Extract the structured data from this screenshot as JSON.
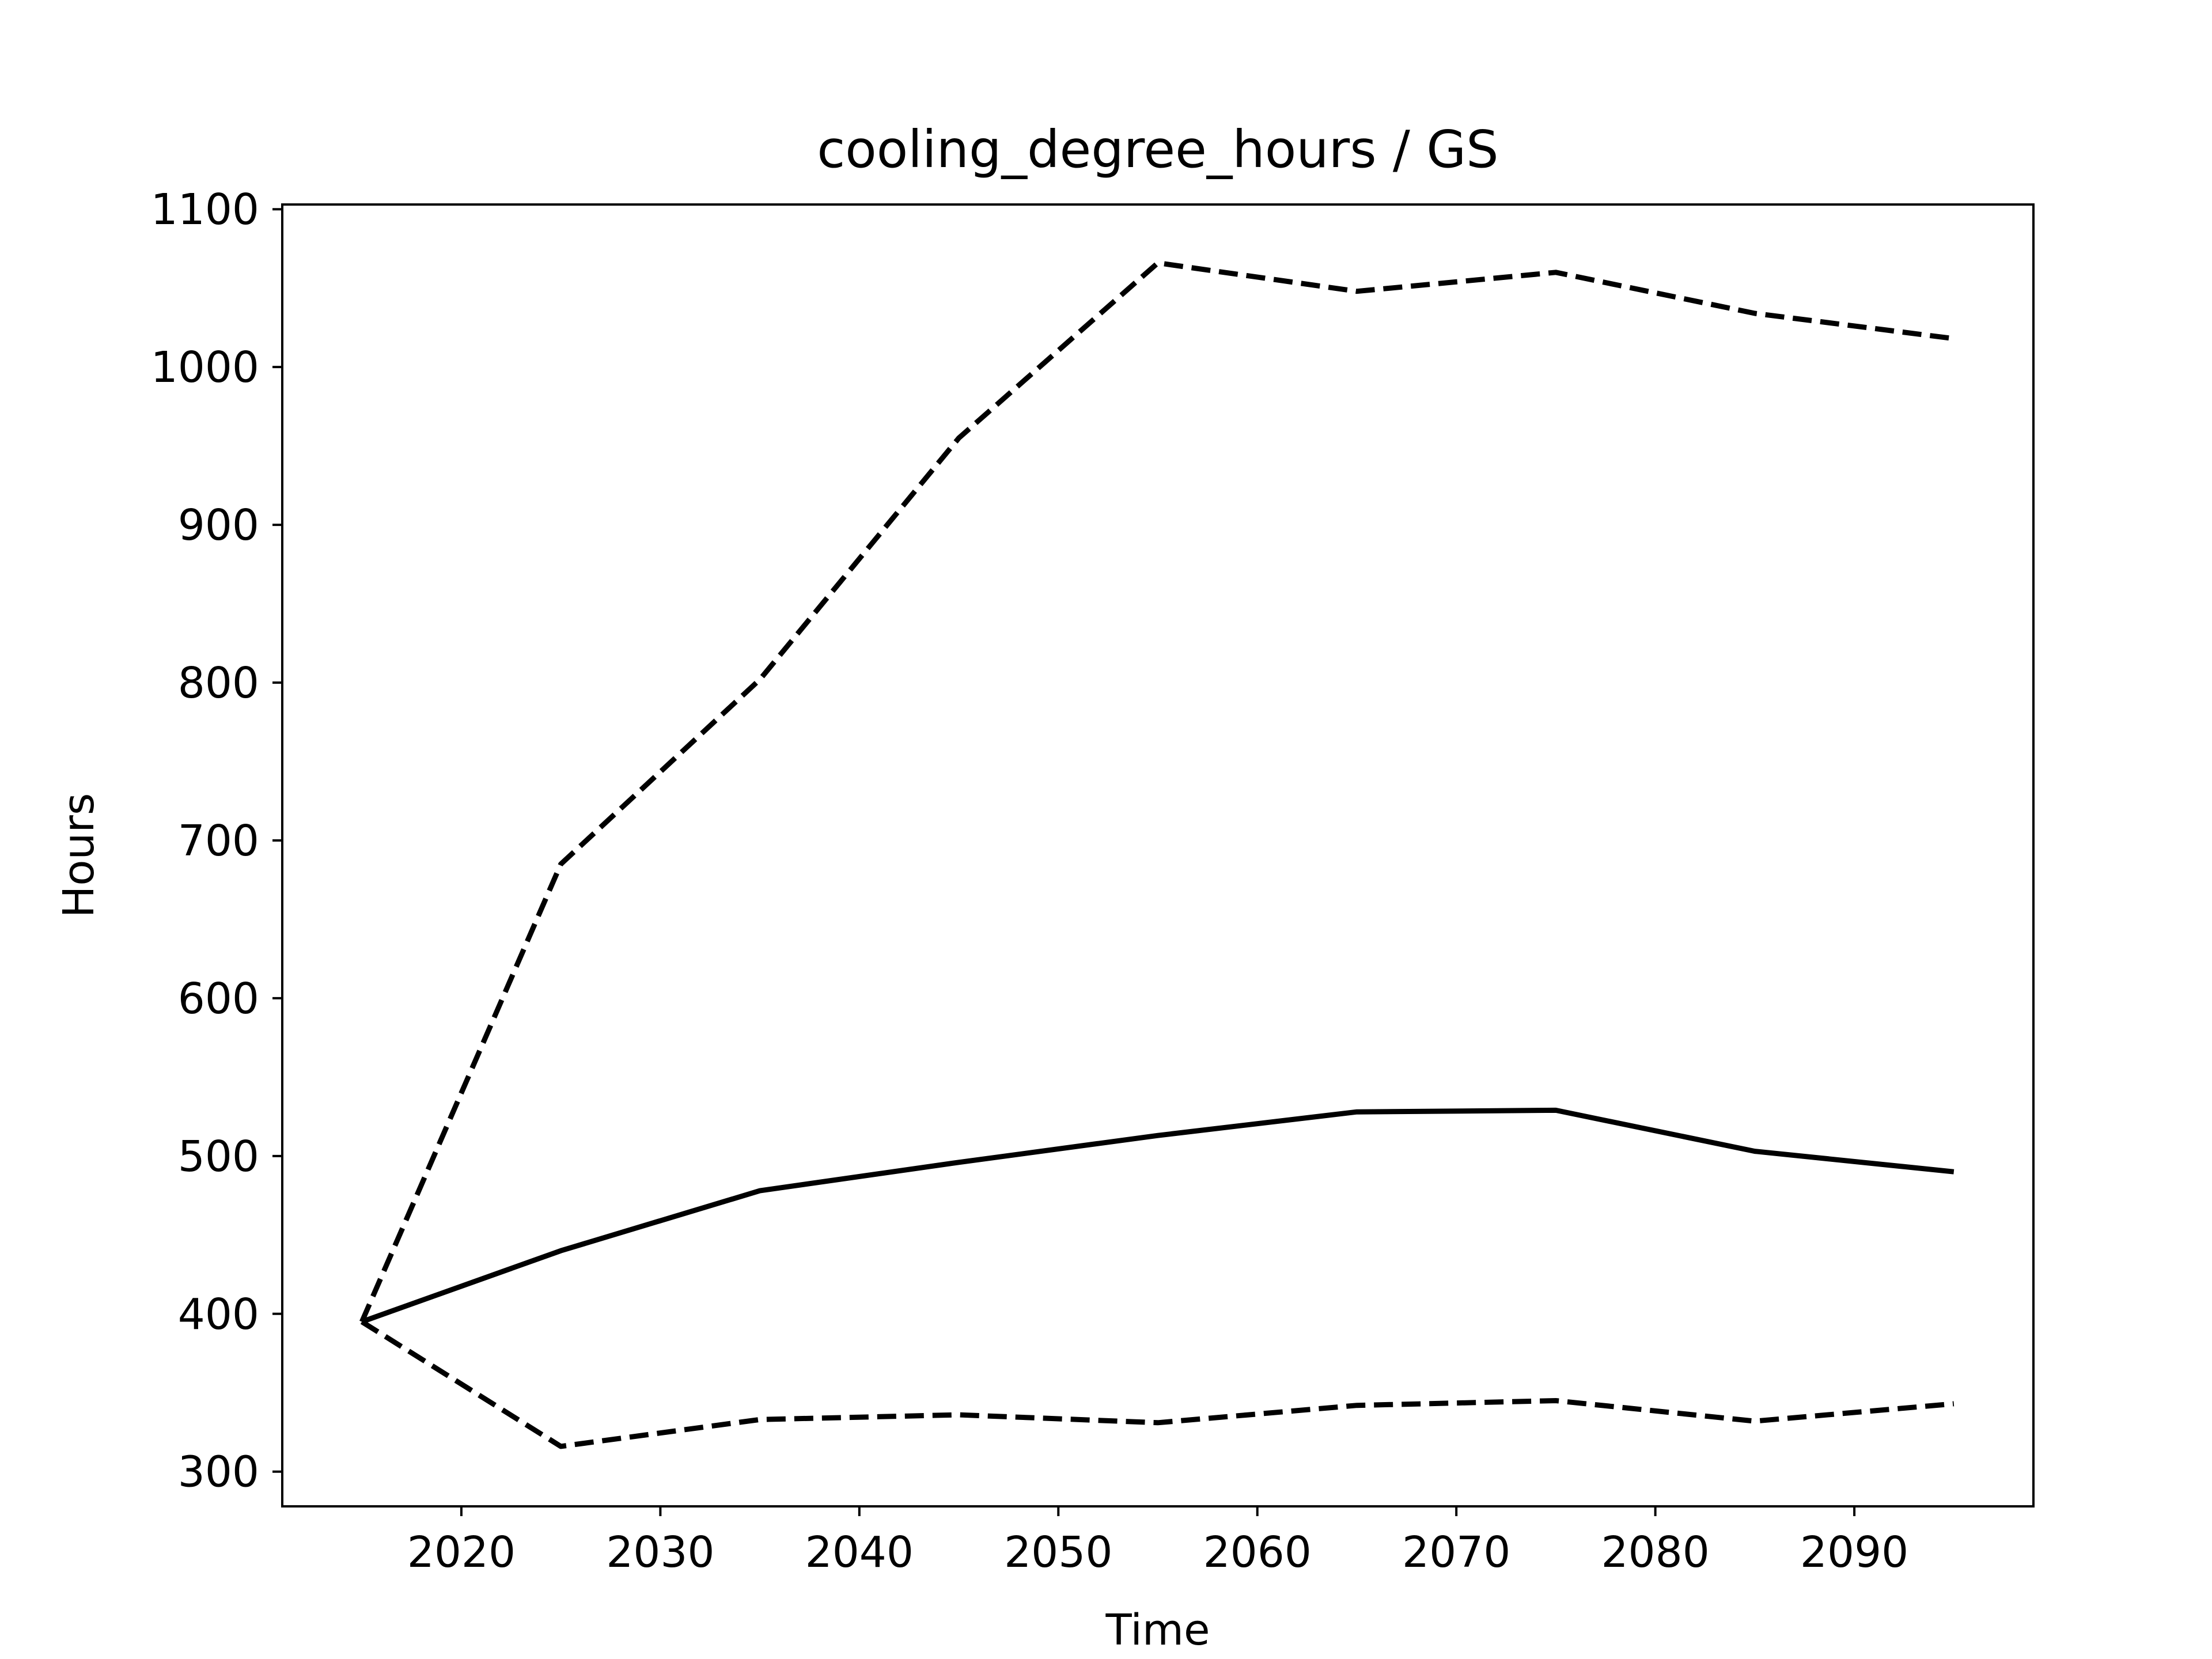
{
  "chart_data": {
    "type": "line",
    "title": "cooling_degree_hours / GS",
    "xlabel": "Time",
    "ylabel": "Hours",
    "xlim": [
      2011,
      2099
    ],
    "ylim": [
      278,
      1103
    ],
    "xticks": [
      2020,
      2030,
      2040,
      2050,
      2060,
      2070,
      2080,
      2090
    ],
    "yticks": [
      300,
      400,
      500,
      600,
      700,
      800,
      900,
      1000,
      1100
    ],
    "grid": false,
    "legend": "none",
    "x": [
      2015,
      2025,
      2035,
      2045,
      2055,
      2065,
      2075,
      2085,
      2095
    ],
    "series": [
      {
        "style": "dashed",
        "color": "#000000",
        "values": [
          395,
          685,
          802,
          955,
          1066,
          1048,
          1060,
          1034,
          1018
        ]
      },
      {
        "style": "solid",
        "color": "#000000",
        "values": [
          395,
          440,
          478,
          496,
          513,
          528,
          529,
          503,
          490
        ]
      },
      {
        "style": "dashed",
        "color": "#000000",
        "values": [
          395,
          316,
          333,
          336,
          331,
          342,
          345,
          332,
          343
        ]
      }
    ]
  }
}
